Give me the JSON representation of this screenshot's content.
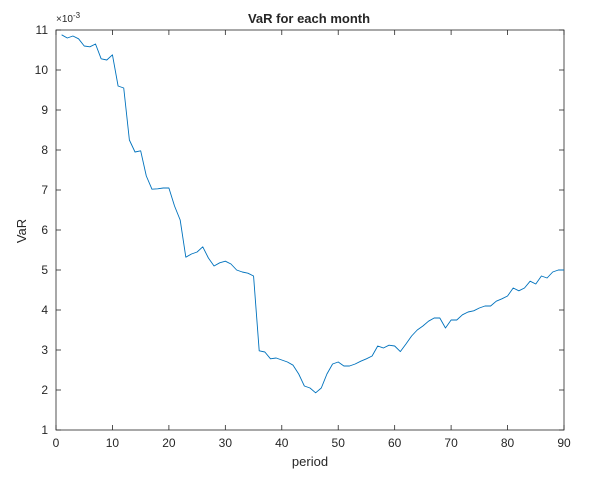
{
  "chart_data": {
    "type": "line",
    "title": "VaR for each month",
    "xlabel": "period",
    "ylabel": "VaR",
    "y_exponent_label": "×10",
    "y_exponent_power": "-3",
    "xlim": [
      0,
      90
    ],
    "ylim": [
      1,
      11
    ],
    "x_ticks": [
      0,
      10,
      20,
      30,
      40,
      50,
      60,
      70,
      80,
      90
    ],
    "y_ticks": [
      1,
      2,
      3,
      4,
      5,
      6,
      7,
      8,
      9,
      10,
      11
    ],
    "grid": false,
    "series": [
      {
        "color": "#0072bd",
        "x": [
          1,
          2,
          3,
          4,
          5,
          6,
          7,
          8,
          9,
          10,
          11,
          12,
          13,
          14,
          15,
          16,
          17,
          18,
          19,
          20,
          21,
          22,
          23,
          24,
          25,
          26,
          27,
          28,
          29,
          30,
          31,
          32,
          33,
          34,
          35,
          36,
          37,
          38,
          39,
          40,
          41,
          42,
          43,
          44,
          45,
          46,
          47,
          48,
          49,
          50,
          51,
          52,
          53,
          54,
          55,
          56,
          57,
          58,
          59,
          60,
          61,
          62,
          63,
          64,
          65,
          66,
          67,
          68,
          69,
          70,
          71,
          72,
          73,
          74,
          75,
          76,
          77,
          78,
          79,
          80,
          81,
          82,
          83,
          84,
          85,
          86,
          87,
          88,
          89,
          90
        ],
        "y": [
          10.88,
          10.8,
          10.85,
          10.78,
          10.6,
          10.58,
          10.65,
          10.28,
          10.25,
          10.38,
          9.6,
          9.55,
          8.25,
          7.95,
          7.98,
          7.35,
          7.02,
          7.03,
          7.05,
          7.05,
          6.6,
          6.25,
          5.32,
          5.4,
          5.45,
          5.58,
          5.3,
          5.1,
          5.18,
          5.22,
          5.15,
          5.0,
          4.95,
          4.92,
          4.85,
          2.98,
          2.95,
          2.78,
          2.8,
          2.75,
          2.7,
          2.62,
          2.4,
          2.1,
          2.05,
          1.93,
          2.05,
          2.4,
          2.65,
          2.7,
          2.6,
          2.6,
          2.65,
          2.72,
          2.78,
          2.85,
          3.1,
          3.05,
          3.12,
          3.1,
          2.96,
          3.15,
          3.35,
          3.5,
          3.6,
          3.72,
          3.8,
          3.8,
          3.55,
          3.75,
          3.75,
          3.88,
          3.95,
          3.98,
          4.05,
          4.1,
          4.1,
          4.22,
          4.28,
          4.35,
          4.55,
          4.48,
          4.55,
          4.72,
          4.65,
          4.85,
          4.8,
          4.95,
          5.0,
          5.0
        ]
      }
    ]
  }
}
